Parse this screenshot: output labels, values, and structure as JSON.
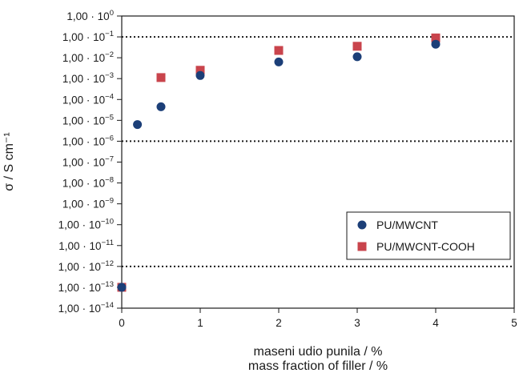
{
  "chart_data": {
    "type": "scatter",
    "xlabel_lines": [
      "maseni udio punila / %",
      "mass fraction of filler / %"
    ],
    "ylabel": "σ / S cm⁻¹",
    "y_scale": "log",
    "xlim": [
      0,
      5
    ],
    "ylim_exponents": [
      -14,
      0
    ],
    "x_ticks": [
      0,
      1,
      2,
      3,
      4,
      5
    ],
    "y_tick_exponents": [
      0,
      -1,
      -2,
      -3,
      -4,
      -5,
      -6,
      -7,
      -8,
      -9,
      -10,
      -11,
      -12,
      -13,
      -14
    ],
    "y_tick_prefix": "1,00 · 10",
    "reference_lines_log10": [
      -1,
      -6,
      -12
    ],
    "legend_position": "bottom-right",
    "series": [
      {
        "name": "PU/MWCNT",
        "marker": "circle",
        "color": "#1c3f78",
        "points": [
          {
            "x": 0,
            "log10_y": -13
          },
          {
            "x": 0.2,
            "log10_y": -5.2
          },
          {
            "x": 0.5,
            "log10_y": -4.35
          },
          {
            "x": 1,
            "log10_y": -2.85
          },
          {
            "x": 2,
            "log10_y": -2.2
          },
          {
            "x": 3,
            "log10_y": -1.95
          },
          {
            "x": 4,
            "log10_y": -1.35
          }
        ]
      },
      {
        "name": "PU/MWCNT-COOH",
        "marker": "square",
        "color": "#c9444c",
        "points": [
          {
            "x": 0,
            "log10_y": -13
          },
          {
            "x": 0.5,
            "log10_y": -2.95
          },
          {
            "x": 1,
            "log10_y": -2.6
          },
          {
            "x": 2,
            "log10_y": -1.65
          },
          {
            "x": 3,
            "log10_y": -1.45
          },
          {
            "x": 4,
            "log10_y": -1.05
          }
        ]
      }
    ]
  }
}
